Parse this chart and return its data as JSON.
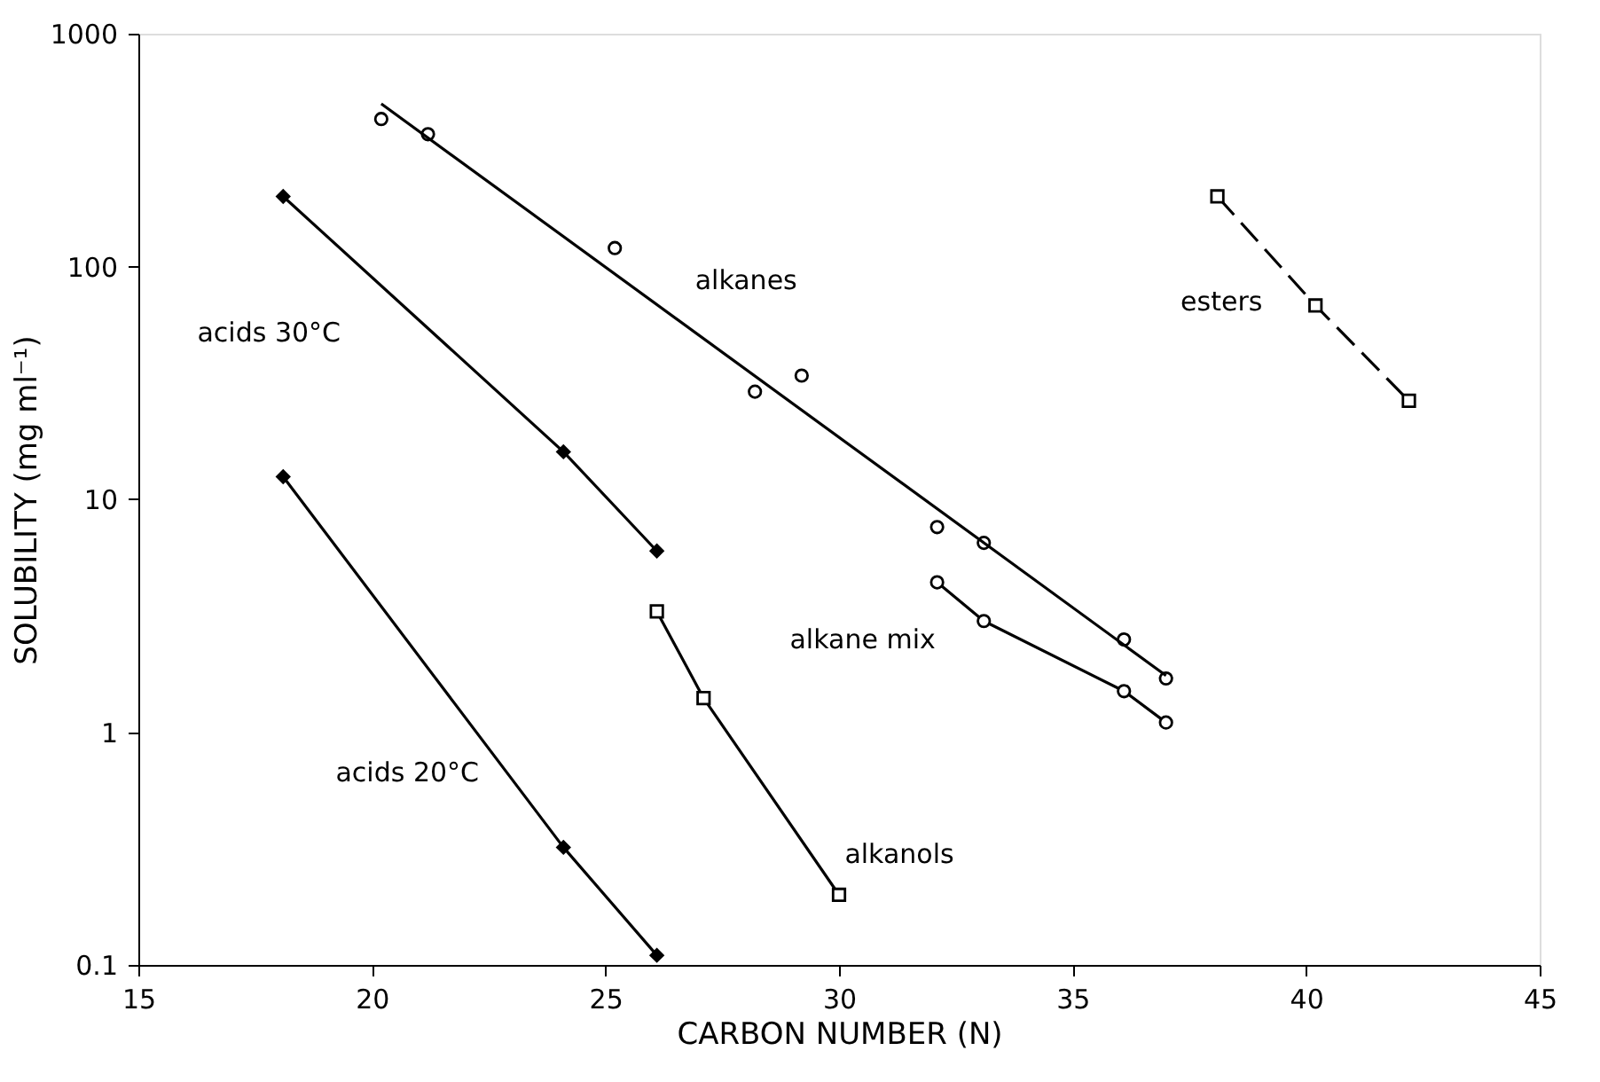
{
  "chart_data": {
    "type": "scatter",
    "xlabel": "CARBON NUMBER (N)",
    "ylabel": "SOLUBILITY (mg ml⁻¹)",
    "log": "y",
    "xlim": [
      15,
      45
    ],
    "xticks": [
      15,
      20,
      25,
      30,
      35,
      40,
      45
    ],
    "ylim": [
      0.1,
      1000
    ],
    "yticks": [
      0.1,
      1,
      10,
      100,
      1000
    ],
    "series": [
      {
        "name": "alkanes",
        "marker": "circle",
        "color": "#000000",
        "x": [
          20.2,
          21.2,
          25.2,
          28.2,
          29.2,
          32.1,
          33.1,
          36.1,
          37.0
        ],
        "values": [
          430,
          370,
          120,
          29,
          34,
          7.6,
          6.5,
          2.5,
          1.7
        ]
      },
      {
        "type": "line",
        "marker": "none",
        "line_style": "solid",
        "color": "#000000",
        "x": [
          20.2,
          37.0
        ],
        "values": [
          500,
          1.75
        ]
      },
      {
        "name": "alkane mix",
        "type": "line",
        "marker": "circle",
        "line_style": "solid",
        "color": "#000000",
        "x": [
          32.1,
          33.1,
          36.1,
          37.0
        ],
        "values": [
          4.4,
          3.0,
          1.5,
          1.1
        ]
      },
      {
        "type": "line",
        "marker": "diamond",
        "line_style": "solid",
        "color": "#000000",
        "name": "acids 30°C",
        "x": [
          18.1,
          24.1,
          26.1
        ],
        "values": [
          200,
          16,
          6.0
        ]
      },
      {
        "type": "line",
        "marker": "diamond",
        "line_style": "solid",
        "color": "#000000",
        "name": "acids 20°C",
        "x": [
          18.1,
          24.1,
          26.1
        ],
        "values": [
          12.5,
          0.32,
          0.11
        ]
      },
      {
        "type": "line",
        "marker": "square",
        "line_style": "solid",
        "color": "#000000",
        "name": "alkanols",
        "x": [
          26.1,
          27.1,
          30.0
        ],
        "values": [
          3.3,
          1.4,
          0.2
        ]
      },
      {
        "type": "line",
        "marker": "square",
        "line_style": "dashed",
        "color": "#000000",
        "name": "esters",
        "x": [
          38.1,
          40.2,
          42.2
        ],
        "values": [
          200,
          68,
          26.5
        ]
      }
    ]
  }
}
